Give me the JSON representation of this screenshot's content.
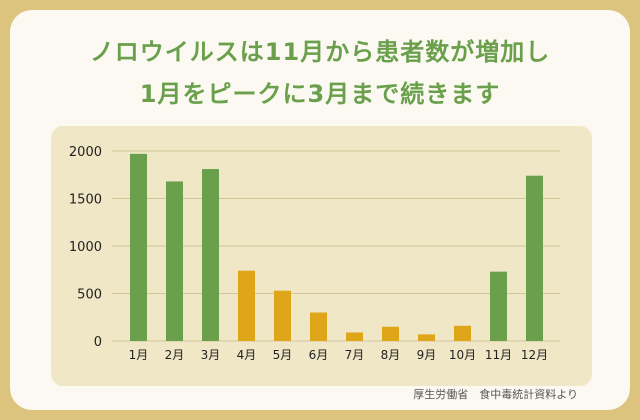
{
  "header": {
    "title_line1": "ノロウイルスは11月から患者数が増加し",
    "title_line2": "1月をピークに3月まで続きます"
  },
  "footer": {
    "source": "厚生労働省　食中毒統計資料より"
  },
  "colors": {
    "peak": "#6aa04c",
    "offpeak": "#e0a61a",
    "title": "#6aa04c"
  },
  "chart_data": {
    "type": "bar",
    "title": "",
    "xlabel": "",
    "ylabel": "",
    "categories": [
      "1月",
      "2月",
      "3月",
      "4月",
      "5月",
      "6月",
      "7月",
      "8月",
      "9月",
      "10月",
      "11月",
      "12月"
    ],
    "values": [
      1970,
      1680,
      1810,
      740,
      530,
      300,
      90,
      150,
      70,
      160,
      730,
      1740
    ],
    "highlight": [
      true,
      true,
      true,
      false,
      false,
      false,
      false,
      false,
      false,
      false,
      true,
      true
    ],
    "ylim": [
      0,
      2000
    ],
    "yticks": [
      0,
      500,
      1000,
      1500,
      2000
    ],
    "grid": true,
    "legend": "none"
  }
}
